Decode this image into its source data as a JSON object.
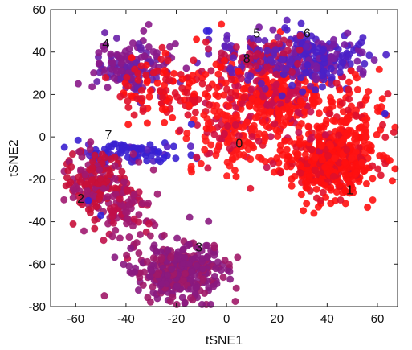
{
  "chart_data": {
    "type": "scatter",
    "title": "",
    "xlabel": "tSNE1",
    "ylabel": "tSNE2",
    "xlim": [
      -70,
      68
    ],
    "ylim": [
      -80,
      60
    ],
    "xticks": [
      -60,
      -40,
      -20,
      0,
      20,
      40,
      60
    ],
    "yticks": [
      -80,
      -60,
      -40,
      -20,
      0,
      20,
      40,
      60
    ],
    "grid": false,
    "legend": "none",
    "colors": {
      "red": "#ff1010",
      "purple": "#8a1a8a",
      "blue": "#3420d8",
      "axis": "#222222"
    },
    "cluster_labels": [
      {
        "text": "0",
        "x": 5,
        "y": -5
      },
      {
        "text": "1",
        "x": 49,
        "y": -27
      },
      {
        "text": "2",
        "x": -58,
        "y": -31
      },
      {
        "text": "3",
        "x": -11,
        "y": -54
      },
      {
        "text": "4",
        "x": -48,
        "y": 42
      },
      {
        "text": "5",
        "x": 12,
        "y": 47
      },
      {
        "text": "6",
        "x": 32,
        "y": 47
      },
      {
        "text": "7",
        "x": -47,
        "y": -1
      },
      {
        "text": "8",
        "x": 8,
        "y": 35
      }
    ],
    "clusters": [
      {
        "cx": 40,
        "cy": -12,
        "sx": 9,
        "sy": 8,
        "n": 420,
        "color": "#ff1010",
        "alt": "#e0102a",
        "altShare": 0.25
      },
      {
        "cx": 18,
        "cy": 18,
        "sx": 13,
        "sy": 10,
        "n": 380,
        "color": "#ff1414",
        "alt": "#c81050",
        "altShare": 0.35
      },
      {
        "cx": 36,
        "cy": 37,
        "sx": 11,
        "sy": 6,
        "n": 220,
        "color": "#4a20c8",
        "alt": "#7a1ca0",
        "altShare": 0.4
      },
      {
        "cx": 12,
        "cy": 38,
        "sx": 9,
        "sy": 5,
        "n": 110,
        "color": "#6020b8",
        "alt": "#c0104a",
        "altShare": 0.4
      },
      {
        "cx": -38,
        "cy": 32,
        "sx": 7,
        "sy": 6,
        "n": 150,
        "color": "#8a1a8a",
        "alt": "#6a20a8",
        "altShare": 0.4
      },
      {
        "cx": -20,
        "cy": 22,
        "sx": 12,
        "sy": 8,
        "n": 120,
        "color": "#e0102a",
        "alt": "#ff1010",
        "altShare": 0.4
      },
      {
        "cx": -38,
        "cy": -8,
        "sx": 10,
        "sy": 3,
        "n": 80,
        "color": "#3a20d0",
        "alt": "#5a20c0",
        "altShare": 0.4
      },
      {
        "cx": -52,
        "cy": -22,
        "sx": 6,
        "sy": 8,
        "n": 180,
        "color": "#c8103a",
        "alt": "#a01870",
        "altShare": 0.45
      },
      {
        "cx": -40,
        "cy": -35,
        "sx": 5,
        "sy": 8,
        "n": 80,
        "color": "#c0104a",
        "alt": "#a01870",
        "altShare": 0.45
      },
      {
        "cx": -18,
        "cy": -63,
        "sx": 9,
        "sy": 7,
        "n": 340,
        "color": "#8a1a80",
        "alt": "#a01868",
        "altShare": 0.4
      },
      {
        "cx": 0,
        "cy": 0,
        "sx": 8,
        "sy": 9,
        "n": 100,
        "color": "#ff1818",
        "alt": "#d01040",
        "altShare": 0.3
      },
      {
        "cx": 52,
        "cy": 5,
        "sx": 7,
        "sy": 10,
        "n": 90,
        "color": "#ff1414",
        "alt": "#e0102a",
        "altShare": 0.3
      }
    ],
    "points": [
      {
        "x": -8,
        "y": 50,
        "color": "#3420d8"
      },
      {
        "x": -7,
        "y": 50,
        "color": "#3420d8"
      },
      {
        "x": 63,
        "y": 11,
        "color": "#3420d8"
      },
      {
        "x": 62,
        "y": 18,
        "color": "#ff1010"
      },
      {
        "x": -14,
        "y": 6,
        "color": "#3420d8"
      },
      {
        "x": -8,
        "y": 4,
        "color": "#ff1010"
      },
      {
        "x": -55,
        "y": -30,
        "color": "#3420d8"
      },
      {
        "x": -50,
        "y": -37,
        "color": "#3420d8"
      },
      {
        "x": -12,
        "y": 46,
        "color": "#ff1010"
      },
      {
        "x": 24,
        "y": -6,
        "color": "#ff1010"
      },
      {
        "x": 20,
        "y": -10,
        "color": "#ff1010"
      },
      {
        "x": 29,
        "y": -13,
        "color": "#ff1010"
      },
      {
        "x": -25,
        "y": -10,
        "color": "#3420d8"
      },
      {
        "x": -27,
        "y": -7,
        "color": "#3420d8"
      },
      {
        "x": -33,
        "y": 50,
        "color": "#8a1a8a"
      },
      {
        "x": -31,
        "y": 53,
        "color": "#8a1a8a"
      }
    ]
  }
}
